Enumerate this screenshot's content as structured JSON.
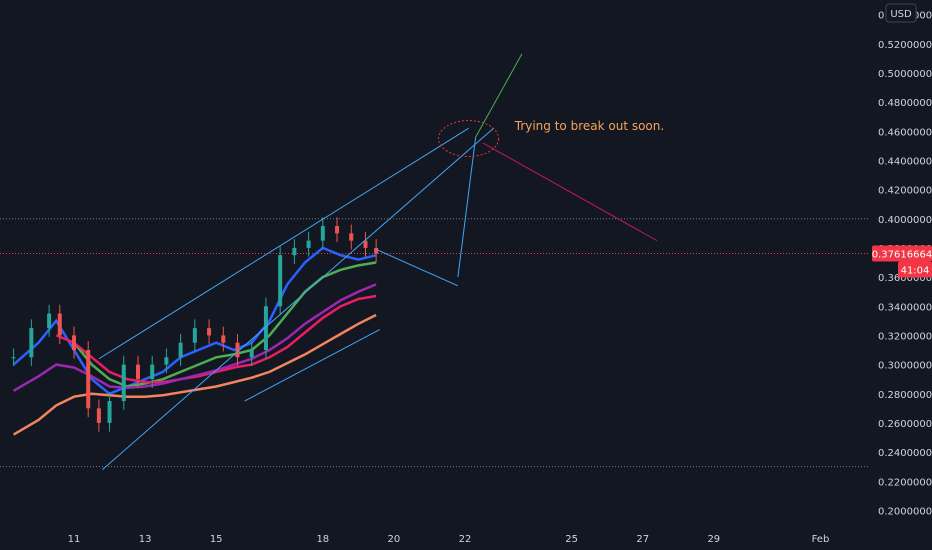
{
  "chart_data": {
    "type": "line",
    "title": "",
    "currency_label": "USD",
    "y_ticks": [
      "0.54000000",
      "0.52000000",
      "0.50000000",
      "0.48000000",
      "0.46000000",
      "0.44000000",
      "0.42000000",
      "0.40000000",
      "0.38000000",
      "0.36000000",
      "0.34000000",
      "0.32000000",
      "0.30000000",
      "0.28000000",
      "0.26000000",
      "0.24000000",
      "0.22000000",
      "0.20000000"
    ],
    "x_ticks": [
      {
        "label": "11",
        "day": 11
      },
      {
        "label": "13",
        "day": 13
      },
      {
        "label": "15",
        "day": 15
      },
      {
        "label": "18",
        "day": 18
      },
      {
        "label": "20",
        "day": 20
      },
      {
        "label": "22",
        "day": 22
      },
      {
        "label": "25",
        "day": 25
      },
      {
        "label": "27",
        "day": 27
      },
      {
        "label": "29",
        "day": 29
      },
      {
        "label": "Feb",
        "day": 32
      }
    ],
    "ylim": [
      0.19,
      0.55
    ],
    "current_price_label": "0.37616664",
    "current_price": 0.37616664,
    "countdown_label": "41:04",
    "horizontal_levels": [
      0.4,
      0.23
    ],
    "price_series": {
      "name": "",
      "color": "#26a69a",
      "x": [
        9.3,
        9.8,
        10.3,
        10.6,
        11.0,
        11.4,
        11.7,
        12.0,
        12.4,
        12.8,
        13.2,
        13.6,
        14.0,
        14.4,
        14.8,
        15.2,
        15.6,
        16.0,
        16.4,
        16.8,
        17.2,
        17.6,
        18.0,
        18.4,
        18.8,
        19.2,
        19.5
      ],
      "y": [
        0.305,
        0.325,
        0.335,
        0.32,
        0.31,
        0.27,
        0.26,
        0.275,
        0.3,
        0.29,
        0.3,
        0.305,
        0.315,
        0.325,
        0.32,
        0.315,
        0.305,
        0.31,
        0.34,
        0.375,
        0.38,
        0.385,
        0.395,
        0.39,
        0.385,
        0.38,
        0.376
      ]
    },
    "ma_series": [
      {
        "color": "#2962ff",
        "x": [
          9.3,
          10.0,
          10.5,
          11.0,
          11.5,
          12.0,
          12.5,
          13.0,
          13.5,
          14.0,
          14.5,
          15.0,
          15.5,
          16.0,
          16.5,
          17.0,
          17.5,
          18.0,
          18.5,
          19.0,
          19.5
        ],
        "y": [
          0.3,
          0.315,
          0.33,
          0.31,
          0.29,
          0.28,
          0.285,
          0.29,
          0.295,
          0.305,
          0.31,
          0.315,
          0.31,
          0.315,
          0.33,
          0.355,
          0.37,
          0.38,
          0.375,
          0.372,
          0.375
        ]
      },
      {
        "color": "#4caf50",
        "x": [
          11.0,
          11.5,
          12.0,
          12.5,
          13.0,
          13.5,
          14.0,
          14.5,
          15.0,
          15.5,
          16.0,
          16.5,
          17.0,
          17.5,
          18.0,
          18.5,
          19.0,
          19.5
        ],
        "y": [
          0.315,
          0.3,
          0.29,
          0.285,
          0.287,
          0.29,
          0.295,
          0.3,
          0.305,
          0.307,
          0.31,
          0.32,
          0.335,
          0.35,
          0.36,
          0.365,
          0.368,
          0.37
        ]
      },
      {
        "color": "#e91e63",
        "x": [
          10.5,
          11.0,
          11.5,
          12.0,
          12.5,
          13.0,
          13.5,
          14.0,
          14.5,
          15.0,
          15.5,
          16.0,
          16.5,
          17.0,
          17.5,
          18.0,
          18.5,
          19.0,
          19.5
        ],
        "y": [
          0.32,
          0.315,
          0.305,
          0.295,
          0.29,
          0.288,
          0.288,
          0.29,
          0.292,
          0.295,
          0.298,
          0.3,
          0.305,
          0.312,
          0.322,
          0.332,
          0.34,
          0.345,
          0.347
        ]
      },
      {
        "color": "#9c27b0",
        "x": [
          9.3,
          10.0,
          10.5,
          11.0,
          11.5,
          12.0,
          12.5,
          13.0,
          13.5,
          14.0,
          14.5,
          15.0,
          15.5,
          16.0,
          16.5,
          17.0,
          17.5,
          18.0,
          18.5,
          19.0,
          19.5
        ],
        "y": [
          0.282,
          0.292,
          0.3,
          0.298,
          0.292,
          0.285,
          0.284,
          0.285,
          0.287,
          0.29,
          0.293,
          0.296,
          0.3,
          0.304,
          0.31,
          0.318,
          0.328,
          0.336,
          0.344,
          0.35,
          0.355
        ]
      },
      {
        "color": "#f4845f",
        "x": [
          9.3,
          10.0,
          10.5,
          11.0,
          11.5,
          12.0,
          12.5,
          13.0,
          13.5,
          14.0,
          14.5,
          15.0,
          15.5,
          16.0,
          16.5,
          17.0,
          17.5,
          18.0,
          18.5,
          19.0,
          19.5
        ],
        "y": [
          0.252,
          0.262,
          0.272,
          0.278,
          0.28,
          0.279,
          0.278,
          0.278,
          0.279,
          0.281,
          0.283,
          0.285,
          0.288,
          0.291,
          0.295,
          0.301,
          0.307,
          0.314,
          0.321,
          0.328,
          0.334
        ]
      }
    ],
    "drawings": [
      {
        "color": "#42a5f5",
        "points": [
          [
            11.8,
            0.228
          ],
          [
            22.8,
            0.462
          ]
        ]
      },
      {
        "color": "#42a5f5",
        "points": [
          [
            11.7,
            0.304
          ],
          [
            22.1,
            0.462
          ]
        ]
      },
      {
        "color": "#42a5f5",
        "points": [
          [
            15.8,
            0.275
          ],
          [
            19.6,
            0.324
          ]
        ]
      },
      {
        "color": "#42a5f5",
        "points": [
          [
            19.5,
            0.379
          ],
          [
            21.8,
            0.354
          ]
        ]
      },
      {
        "color": "#42a5f5",
        "points": [
          [
            21.8,
            0.36
          ],
          [
            22.3,
            0.456
          ]
        ]
      },
      {
        "color": "#4caf50",
        "points": [
          [
            22.3,
            0.456
          ],
          [
            23.6,
            0.513
          ]
        ]
      },
      {
        "color": "#c2185b",
        "points": [
          [
            22.5,
            0.452
          ],
          [
            27.4,
            0.385
          ]
        ]
      }
    ],
    "highlight_circle": {
      "day": 22.1,
      "price": 0.455
    },
    "annotation": "Trying to break out soon.",
    "annotation_pos": {
      "day": 23.4,
      "price": 0.461
    },
    "colors": {
      "background": "#131722",
      "grid": "#2a2e39",
      "price_label_bg": "#f23645",
      "up": "#26a69a",
      "down": "#ef5350"
    }
  }
}
